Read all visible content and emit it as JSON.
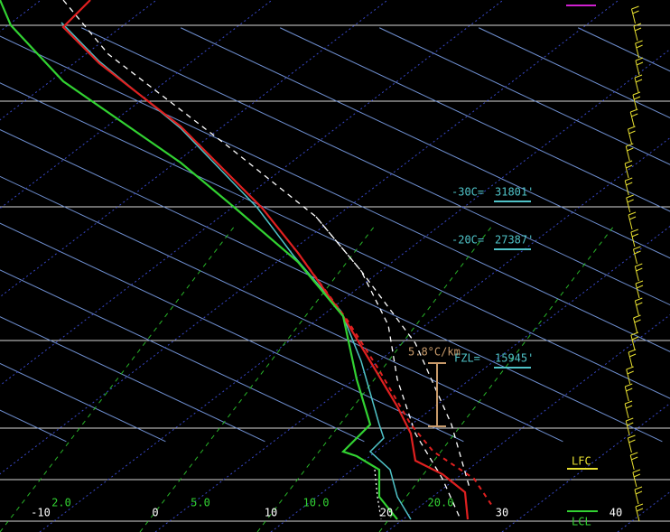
{
  "temperature_labels": [
    "-10",
    "0",
    "10",
    "20",
    "30",
    "40"
  ],
  "mixing_ratio_labels": [
    "2.0",
    "5.0",
    "10.0",
    "20.0"
  ],
  "levels": [
    {
      "label": "-30C=",
      "height": "31801'"
    },
    {
      "label": "-20C=",
      "height": "27387'"
    },
    {
      "label": "FZL=",
      "height": "15945'"
    }
  ],
  "lapse_rate": "5.8°C/km",
  "lfc": "LFC",
  "lcl": "LCL"
}
